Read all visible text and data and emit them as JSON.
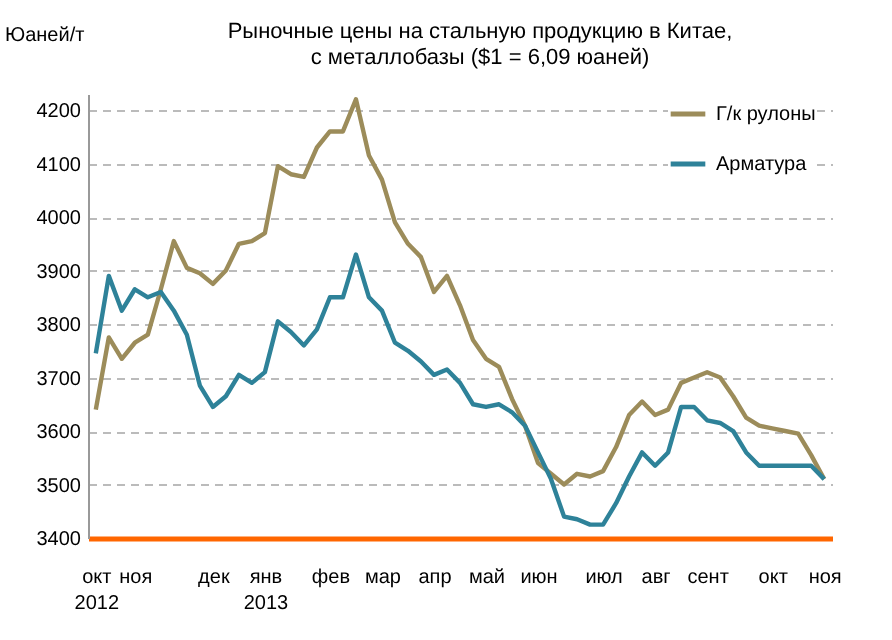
{
  "chart_data": {
    "type": "line",
    "title": "Рыночные цены на стальную продукцию в Китае,\nс металлобазы ($1 = 6,09 юаней)",
    "ylabel": "Юаней/т",
    "categories": [
      "окт\n2012",
      null,
      null,
      "ноя",
      null,
      null,
      null,
      null,
      null,
      "дек",
      null,
      null,
      null,
      "янв\n2013",
      null,
      null,
      null,
      null,
      "фев",
      null,
      null,
      null,
      "мар",
      null,
      null,
      null,
      "апр",
      null,
      null,
      null,
      "май",
      null,
      null,
      null,
      "июн",
      null,
      null,
      null,
      null,
      "июл",
      null,
      null,
      null,
      "авг",
      null,
      null,
      null,
      "сент",
      null,
      null,
      null,
      null,
      "окт",
      null,
      null,
      null,
      "ноя"
    ],
    "series": [
      {
        "name": "Г/к рулоны",
        "color": "#9c8c5a",
        "values": [
          3640,
          3775,
          3735,
          3765,
          3780,
          3865,
          3955,
          3905,
          3895,
          3875,
          3900,
          3950,
          3955,
          3970,
          4095,
          4080,
          4075,
          4130,
          4160,
          4160,
          4220,
          4115,
          4070,
          3990,
          3950,
          3925,
          3860,
          3890,
          3835,
          3770,
          3735,
          3720,
          3660,
          3610,
          3540,
          3520,
          3500,
          3520,
          3515,
          3525,
          3570,
          3630,
          3655,
          3630,
          3640,
          3690,
          3700,
          3710,
          3700,
          3665,
          3625,
          3610,
          3605,
          3600,
          3595,
          3555,
          3510
        ]
      },
      {
        "name": "Арматура",
        "color": "#2e8299",
        "values": [
          3745,
          3890,
          3825,
          3865,
          3850,
          3860,
          3825,
          3780,
          3685,
          3645,
          3665,
          3705,
          3690,
          3710,
          3805,
          3785,
          3760,
          3790,
          3850,
          3850,
          3930,
          3850,
          3825,
          3765,
          3750,
          3730,
          3705,
          3715,
          3690,
          3650,
          3645,
          3650,
          3635,
          3610,
          3560,
          3510,
          3440,
          3435,
          3425,
          3425,
          3465,
          3515,
          3560,
          3535,
          3560,
          3645,
          3645,
          3620,
          3615,
          3600,
          3560,
          3535,
          3535,
          3535,
          3535,
          3535,
          3510
        ]
      }
    ],
    "ylim": [
      3400,
      4230
    ],
    "yticks": [
      3400,
      3500,
      3600,
      3700,
      3800,
      3900,
      4000,
      4100,
      4200
    ],
    "grid": "y",
    "legend": "top right",
    "line_style": "solid",
    "marker": "none"
  }
}
